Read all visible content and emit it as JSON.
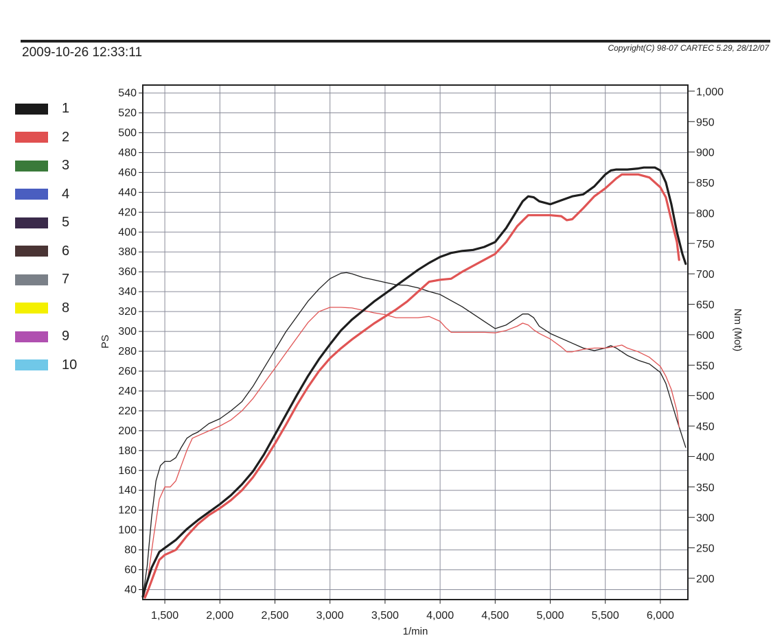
{
  "header": {
    "timestamp": "2009-10-26 12:33:11",
    "copyright": "Copyright(C) 98-07 CARTEC 5.29, 28/12/07"
  },
  "legend": [
    {
      "label": "1",
      "color": "#1a1a1a"
    },
    {
      "label": "2",
      "color": "#e05050"
    },
    {
      "label": "3",
      "color": "#3a7a3a"
    },
    {
      "label": "4",
      "color": "#4a5ec0"
    },
    {
      "label": "5",
      "color": "#3a2a4a"
    },
    {
      "label": "6",
      "color": "#4a3434"
    },
    {
      "label": "7",
      "color": "#7a8088"
    },
    {
      "label": "8",
      "color": "#f4f000"
    },
    {
      "label": "9",
      "color": "#b050b0"
    },
    {
      "label": "10",
      "color": "#70c8e8"
    }
  ],
  "chart_data": {
    "type": "line",
    "xlabel": "1/min",
    "ylabel": "PS",
    "y2label": "Nm (Mot)",
    "xlim": [
      1300,
      6250
    ],
    "ylim": [
      30,
      548
    ],
    "y2lim": [
      165,
      1010
    ],
    "x_ticks": [
      {
        "value": 1500,
        "label": "1,500"
      },
      {
        "value": 2000,
        "label": "2,000"
      },
      {
        "value": 2500,
        "label": "2,500"
      },
      {
        "value": 3000,
        "label": "3,000"
      },
      {
        "value": 3500,
        "label": "3,500"
      },
      {
        "value": 4000,
        "label": "4,000"
      },
      {
        "value": 4500,
        "label": "4,500"
      },
      {
        "value": 5000,
        "label": "5,000"
      },
      {
        "value": 5500,
        "label": "5,500"
      },
      {
        "value": 6000,
        "label": "6,000"
      }
    ],
    "y_ticks": [
      {
        "value": 40,
        "label": "40"
      },
      {
        "value": 60,
        "label": "60"
      },
      {
        "value": 80,
        "label": "80"
      },
      {
        "value": 100,
        "label": "100"
      },
      {
        "value": 120,
        "label": "120"
      },
      {
        "value": 140,
        "label": "140"
      },
      {
        "value": 160,
        "label": "160"
      },
      {
        "value": 180,
        "label": "180"
      },
      {
        "value": 200,
        "label": "200"
      },
      {
        "value": 220,
        "label": "220"
      },
      {
        "value": 240,
        "label": "240"
      },
      {
        "value": 260,
        "label": "260"
      },
      {
        "value": 280,
        "label": "280"
      },
      {
        "value": 300,
        "label": "300"
      },
      {
        "value": 320,
        "label": "320"
      },
      {
        "value": 340,
        "label": "340"
      },
      {
        "value": 360,
        "label": "360"
      },
      {
        "value": 380,
        "label": "380"
      },
      {
        "value": 400,
        "label": "400"
      },
      {
        "value": 420,
        "label": "420"
      },
      {
        "value": 440,
        "label": "440"
      },
      {
        "value": 460,
        "label": "460"
      },
      {
        "value": 480,
        "label": "480"
      },
      {
        "value": 500,
        "label": "500"
      },
      {
        "value": 520,
        "label": "520"
      },
      {
        "value": 540,
        "label": "540"
      }
    ],
    "y2_ticks": [
      {
        "value": 200,
        "label": "200"
      },
      {
        "value": 250,
        "label": "250"
      },
      {
        "value": 300,
        "label": "300"
      },
      {
        "value": 350,
        "label": "350"
      },
      {
        "value": 400,
        "label": "400"
      },
      {
        "value": 450,
        "label": "450"
      },
      {
        "value": 500,
        "label": "500"
      },
      {
        "value": 550,
        "label": "550"
      },
      {
        "value": 600,
        "label": "600"
      },
      {
        "value": 650,
        "label": "650"
      },
      {
        "value": 700,
        "label": "700"
      },
      {
        "value": 750,
        "label": "750"
      },
      {
        "value": 800,
        "label": "800"
      },
      {
        "value": 850,
        "label": "850"
      },
      {
        "value": 900,
        "label": "900"
      },
      {
        "value": 950,
        "label": "950"
      },
      {
        "value": 1000,
        "label": "1,000"
      }
    ],
    "series": [
      {
        "name": "1",
        "axis": "PS",
        "color": "#1e1e1e",
        "width": 3.2,
        "points": [
          [
            1300,
            33
          ],
          [
            1330,
            45
          ],
          [
            1380,
            62
          ],
          [
            1450,
            78
          ],
          [
            1500,
            82
          ],
          [
            1600,
            90
          ],
          [
            1700,
            101
          ],
          [
            1800,
            110
          ],
          [
            1900,
            118
          ],
          [
            2000,
            126
          ],
          [
            2100,
            135
          ],
          [
            2200,
            146
          ],
          [
            2300,
            159
          ],
          [
            2400,
            176
          ],
          [
            2500,
            196
          ],
          [
            2600,
            216
          ],
          [
            2700,
            236
          ],
          [
            2800,
            255
          ],
          [
            2900,
            272
          ],
          [
            3000,
            287
          ],
          [
            3100,
            301
          ],
          [
            3200,
            312
          ],
          [
            3300,
            321
          ],
          [
            3400,
            330
          ],
          [
            3500,
            338
          ],
          [
            3600,
            346
          ],
          [
            3700,
            354
          ],
          [
            3800,
            362
          ],
          [
            3900,
            369
          ],
          [
            4000,
            375
          ],
          [
            4100,
            379
          ],
          [
            4200,
            381
          ],
          [
            4300,
            382
          ],
          [
            4400,
            385
          ],
          [
            4500,
            390
          ],
          [
            4600,
            404
          ],
          [
            4700,
            422
          ],
          [
            4750,
            431
          ],
          [
            4800,
            436
          ],
          [
            4850,
            435
          ],
          [
            4900,
            431
          ],
          [
            5000,
            428
          ],
          [
            5100,
            432
          ],
          [
            5200,
            436
          ],
          [
            5300,
            438
          ],
          [
            5400,
            446
          ],
          [
            5500,
            458
          ],
          [
            5550,
            462
          ],
          [
            5600,
            463
          ],
          [
            5700,
            463
          ],
          [
            5800,
            464
          ],
          [
            5850,
            465
          ],
          [
            5950,
            465
          ],
          [
            6000,
            462
          ],
          [
            6050,
            450
          ],
          [
            6100,
            428
          ],
          [
            6150,
            400
          ],
          [
            6200,
            378
          ],
          [
            6230,
            368
          ]
        ]
      },
      {
        "name": "2",
        "axis": "PS",
        "color": "#e05454",
        "width": 3.2,
        "points": [
          [
            1320,
            32
          ],
          [
            1350,
            40
          ],
          [
            1400,
            55
          ],
          [
            1450,
            70
          ],
          [
            1500,
            75
          ],
          [
            1600,
            80
          ],
          [
            1700,
            94
          ],
          [
            1800,
            106
          ],
          [
            1900,
            115
          ],
          [
            2000,
            122
          ],
          [
            2100,
            130
          ],
          [
            2200,
            140
          ],
          [
            2300,
            153
          ],
          [
            2400,
            169
          ],
          [
            2500,
            187
          ],
          [
            2600,
            206
          ],
          [
            2700,
            226
          ],
          [
            2800,
            244
          ],
          [
            2900,
            260
          ],
          [
            3000,
            273
          ],
          [
            3100,
            283
          ],
          [
            3200,
            292
          ],
          [
            3300,
            300
          ],
          [
            3400,
            308
          ],
          [
            3500,
            315
          ],
          [
            3600,
            322
          ],
          [
            3700,
            330
          ],
          [
            3800,
            340
          ],
          [
            3900,
            350
          ],
          [
            4000,
            352
          ],
          [
            4100,
            353
          ],
          [
            4200,
            360
          ],
          [
            4300,
            366
          ],
          [
            4400,
            372
          ],
          [
            4500,
            378
          ],
          [
            4600,
            390
          ],
          [
            4700,
            406
          ],
          [
            4800,
            417
          ],
          [
            4900,
            417
          ],
          [
            5000,
            417
          ],
          [
            5100,
            416
          ],
          [
            5150,
            412
          ],
          [
            5200,
            413
          ],
          [
            5300,
            424
          ],
          [
            5400,
            436
          ],
          [
            5500,
            444
          ],
          [
            5600,
            454
          ],
          [
            5650,
            458
          ],
          [
            5700,
            458
          ],
          [
            5800,
            458
          ],
          [
            5900,
            455
          ],
          [
            6000,
            445
          ],
          [
            6050,
            435
          ],
          [
            6100,
            412
          ],
          [
            6150,
            390
          ],
          [
            6170,
            372
          ]
        ]
      },
      {
        "name": "1",
        "axis": "Nm",
        "color": "#1e1e1e",
        "width": 1.3,
        "points": [
          [
            1300,
            170
          ],
          [
            1340,
            220
          ],
          [
            1380,
            300
          ],
          [
            1420,
            360
          ],
          [
            1460,
            385
          ],
          [
            1500,
            392
          ],
          [
            1550,
            392
          ],
          [
            1600,
            398
          ],
          [
            1650,
            415
          ],
          [
            1700,
            430
          ],
          [
            1750,
            436
          ],
          [
            1800,
            440
          ],
          [
            1900,
            454
          ],
          [
            2000,
            462
          ],
          [
            2100,
            475
          ],
          [
            2200,
            490
          ],
          [
            2300,
            515
          ],
          [
            2400,
            545
          ],
          [
            2500,
            575
          ],
          [
            2600,
            605
          ],
          [
            2700,
            630
          ],
          [
            2800,
            655
          ],
          [
            2900,
            675
          ],
          [
            3000,
            692
          ],
          [
            3100,
            701
          ],
          [
            3150,
            702
          ],
          [
            3200,
            700
          ],
          [
            3300,
            694
          ],
          [
            3400,
            690
          ],
          [
            3500,
            686
          ],
          [
            3600,
            682
          ],
          [
            3700,
            681
          ],
          [
            3800,
            677
          ],
          [
            3900,
            671
          ],
          [
            4000,
            666
          ],
          [
            4100,
            656
          ],
          [
            4200,
            646
          ],
          [
            4300,
            634
          ],
          [
            4400,
            622
          ],
          [
            4500,
            610
          ],
          [
            4600,
            616
          ],
          [
            4700,
            628
          ],
          [
            4750,
            634
          ],
          [
            4800,
            634
          ],
          [
            4850,
            628
          ],
          [
            4900,
            614
          ],
          [
            5000,
            602
          ],
          [
            5100,
            594
          ],
          [
            5200,
            586
          ],
          [
            5300,
            578
          ],
          [
            5400,
            574
          ],
          [
            5500,
            578
          ],
          [
            5550,
            582
          ],
          [
            5600,
            578
          ],
          [
            5700,
            566
          ],
          [
            5800,
            558
          ],
          [
            5900,
            552
          ],
          [
            6000,
            538
          ],
          [
            6050,
            520
          ],
          [
            6100,
            490
          ],
          [
            6150,
            460
          ],
          [
            6230,
            415
          ]
        ]
      },
      {
        "name": "2",
        "axis": "Nm",
        "color": "#e05454",
        "width": 1.3,
        "points": [
          [
            1310,
            170
          ],
          [
            1350,
            205
          ],
          [
            1400,
            270
          ],
          [
            1450,
            330
          ],
          [
            1500,
            350
          ],
          [
            1550,
            350
          ],
          [
            1600,
            360
          ],
          [
            1650,
            385
          ],
          [
            1700,
            410
          ],
          [
            1750,
            430
          ],
          [
            1800,
            434
          ],
          [
            1900,
            442
          ],
          [
            2000,
            450
          ],
          [
            2100,
            460
          ],
          [
            2200,
            475
          ],
          [
            2300,
            495
          ],
          [
            2400,
            520
          ],
          [
            2500,
            545
          ],
          [
            2600,
            570
          ],
          [
            2700,
            595
          ],
          [
            2800,
            620
          ],
          [
            2900,
            638
          ],
          [
            3000,
            645
          ],
          [
            3100,
            645
          ],
          [
            3200,
            644
          ],
          [
            3300,
            640
          ],
          [
            3400,
            636
          ],
          [
            3500,
            633
          ],
          [
            3600,
            628
          ],
          [
            3700,
            628
          ],
          [
            3800,
            628
          ],
          [
            3900,
            630
          ],
          [
            4000,
            622
          ],
          [
            4050,
            612
          ],
          [
            4100,
            604
          ],
          [
            4200,
            604
          ],
          [
            4300,
            604
          ],
          [
            4400,
            604
          ],
          [
            4500,
            603
          ],
          [
            4600,
            607
          ],
          [
            4700,
            614
          ],
          [
            4750,
            619
          ],
          [
            4800,
            616
          ],
          [
            4850,
            608
          ],
          [
            4900,
            602
          ],
          [
            5000,
            593
          ],
          [
            5100,
            580
          ],
          [
            5150,
            572
          ],
          [
            5200,
            572
          ],
          [
            5300,
            576
          ],
          [
            5400,
            578
          ],
          [
            5500,
            578
          ],
          [
            5600,
            581
          ],
          [
            5650,
            583
          ],
          [
            5700,
            578
          ],
          [
            5800,
            572
          ],
          [
            5900,
            563
          ],
          [
            6000,
            548
          ],
          [
            6050,
            532
          ],
          [
            6100,
            510
          ],
          [
            6150,
            475
          ],
          [
            6170,
            448
          ]
        ]
      }
    ],
    "grid": true,
    "legend_position": "left"
  }
}
